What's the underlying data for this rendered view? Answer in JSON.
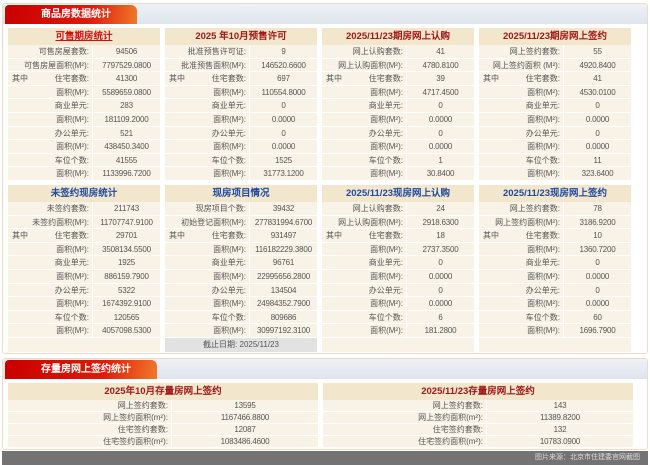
{
  "section1": {
    "title": "商品房数据统计"
  },
  "section2": {
    "title": "存量房网上签约统计"
  },
  "caption": "图片来源：北京市住建委官网截图",
  "panels": [
    {
      "title": "可售期房统计",
      "style": "link",
      "rows": [
        {
          "label": "可售房屋套数:",
          "value": "94506"
        },
        {
          "label": "可售房屋面积(M²):",
          "value": "7797529.0800"
        },
        {
          "prefix": "其中",
          "label": "住宅套数:",
          "value": "41300"
        },
        {
          "label": "面积(M²):",
          "value": "5589659.0800"
        },
        {
          "label": "商业单元:",
          "value": "283"
        },
        {
          "label": "面积(M²):",
          "value": "181109.2000"
        },
        {
          "label": "办公单元:",
          "value": "521"
        },
        {
          "label": "面积(M²):",
          "value": "438450.3400"
        },
        {
          "label": "车位个数:",
          "value": "41555"
        },
        {
          "label": "面积(M²):",
          "value": "1133996.7200"
        }
      ]
    },
    {
      "title": "2025 年10月预售许可",
      "style": "red",
      "rows": [
        {
          "label": "批准预售许可证:",
          "value": "9"
        },
        {
          "label": "批准预售面积(M²):",
          "value": "146520.6600"
        },
        {
          "prefix": "其中",
          "label": "住宅套数:",
          "value": "697"
        },
        {
          "label": "面积(M²):",
          "value": "110554.8000"
        },
        {
          "label": "商业单元:",
          "value": "0"
        },
        {
          "label": "面积(M²):",
          "value": "0.0000"
        },
        {
          "label": "办公单元:",
          "value": "0"
        },
        {
          "label": "面积(M²):",
          "value": "0.0000"
        },
        {
          "label": "车位个数:",
          "value": "1525"
        },
        {
          "label": "面积(M²):",
          "value": "31773.1200"
        }
      ]
    },
    {
      "title": "2025/11/23期房网上认购",
      "style": "red",
      "rows": [
        {
          "label": "网上认购套数:",
          "value": "41"
        },
        {
          "label": "网上认购面积(M²):",
          "value": "4780.8100"
        },
        {
          "prefix": "其中",
          "label": "住宅套数:",
          "value": "39"
        },
        {
          "label": "面积(M²):",
          "value": "4717.4500"
        },
        {
          "label": "商业单元:",
          "value": "0"
        },
        {
          "label": "面积(M²):",
          "value": "0.0000"
        },
        {
          "label": "办公单元:",
          "value": "0"
        },
        {
          "label": "面积(M²):",
          "value": "0.0000"
        },
        {
          "label": "车位个数:",
          "value": "1"
        },
        {
          "label": "面积(M²):",
          "value": "30.8400"
        }
      ]
    },
    {
      "title": "2025/11/23期房网上签约",
      "style": "red",
      "rows": [
        {
          "label": "网上签约套数:",
          "value": "55"
        },
        {
          "label": "网上签约面积 (M²):",
          "value": "4920.8400"
        },
        {
          "prefix": "其中",
          "label": "住宅套数:",
          "value": "41"
        },
        {
          "label": "面积(M²):",
          "value": "4530.0100"
        },
        {
          "label": "商业单元:",
          "value": "0"
        },
        {
          "label": "面积(M²):",
          "value": "0.0000"
        },
        {
          "label": "办公单元:",
          "value": "0"
        },
        {
          "label": "面积(M²):",
          "value": "0.0000"
        },
        {
          "label": "车位个数:",
          "value": "11"
        },
        {
          "label": "面积(M²):",
          "value": "323.6400"
        }
      ]
    },
    {
      "title": "未签约现房统计",
      "style": "blue",
      "rows": [
        {
          "label": "未签约套数:",
          "value": "211743"
        },
        {
          "label": "未签约面积(M²):",
          "value": "11707747.9100"
        },
        {
          "prefix": "其中",
          "label": "住宅套数:",
          "value": "29701"
        },
        {
          "label": "面积(M²):",
          "value": "3508134.5500"
        },
        {
          "label": "商业单元:",
          "value": "1925"
        },
        {
          "label": "面积(M²):",
          "value": "886159.7900"
        },
        {
          "label": "办公单元:",
          "value": "5322"
        },
        {
          "label": "面积(M²):",
          "value": "1674392.9100"
        },
        {
          "label": "车位个数:",
          "value": "120565"
        },
        {
          "label": "面积(M²):",
          "value": "4057098.5300"
        }
      ]
    },
    {
      "title": "现房项目情况",
      "style": "blue",
      "footer": "截止日期:  2025/11/23",
      "rows": [
        {
          "label": "现房项目个数:",
          "value": "39432"
        },
        {
          "label": "初始登记面积(M²):",
          "value": "277831994.6700"
        },
        {
          "prefix": "其中",
          "label": "住宅套数:",
          "value": "931497"
        },
        {
          "label": "面积(M²):",
          "value": "116182229.3800"
        },
        {
          "label": "商业单元:",
          "value": "96761"
        },
        {
          "label": "面积(M²):",
          "value": "22995656.2800"
        },
        {
          "label": "办公单元:",
          "value": "134504"
        },
        {
          "label": "面积(M²):",
          "value": "24984352.7900"
        },
        {
          "label": "车位个数:",
          "value": "809686"
        },
        {
          "label": "面积(M²):",
          "value": "30997192.3100"
        }
      ]
    },
    {
      "title": "2025/11/23现房网上认购",
      "style": "blue",
      "rows": [
        {
          "label": "网上认购套数:",
          "value": "24"
        },
        {
          "label": "网上认购面积(M²):",
          "value": "2918.6300"
        },
        {
          "prefix": "其中",
          "label": "住宅套数:",
          "value": "18"
        },
        {
          "label": "面积(M²):",
          "value": "2737.3500"
        },
        {
          "label": "商业单元:",
          "value": "0"
        },
        {
          "label": "面积(M²):",
          "value": "0.0000"
        },
        {
          "label": "办公单元:",
          "value": "0"
        },
        {
          "label": "面积(M²):",
          "value": "0.0000"
        },
        {
          "label": "车位个数:",
          "value": "6"
        },
        {
          "label": "面积(M²):",
          "value": "181.2800"
        }
      ]
    },
    {
      "title": "2025/11/23现房网上签约",
      "style": "blue",
      "rows": [
        {
          "label": "网上签约套数:",
          "value": "78"
        },
        {
          "label": "网上签约面积(M²):",
          "value": "3186.9200"
        },
        {
          "prefix": "其中",
          "label": "住宅套数:",
          "value": "10"
        },
        {
          "label": "面积(M²):",
          "value": "1360.7200"
        },
        {
          "label": "商业单元:",
          "value": "0"
        },
        {
          "label": "面积(M²):",
          "value": "0.0000"
        },
        {
          "label": "办公单元:",
          "value": "0"
        },
        {
          "label": "面积(M²):",
          "value": "0.0000"
        },
        {
          "label": "车位个数:",
          "value": "60"
        },
        {
          "label": "面积(M²):",
          "value": "1696.7900"
        }
      ]
    }
  ],
  "resale": [
    {
      "title": "2025年10月存量房网上签约",
      "rows": [
        {
          "label": "网上签约套数:",
          "value": "13595"
        },
        {
          "label": "网上签约面积(m²):",
          "value": "1167466.8800"
        },
        {
          "label": "住宅签约套数:",
          "value": "12087"
        },
        {
          "label": "住宅签约面积(m²):",
          "value": "1083486.4600"
        }
      ]
    },
    {
      "title": "2025/11/23存量房网上签约",
      "rows": [
        {
          "label": "网上签约套数:",
          "value": "143"
        },
        {
          "label": "网上签约面积(m²):",
          "value": "11389.8200"
        },
        {
          "label": "住宅签约套数:",
          "value": "132"
        },
        {
          "label": "住宅签约面积(m²):",
          "value": "10783.0900"
        }
      ]
    }
  ]
}
